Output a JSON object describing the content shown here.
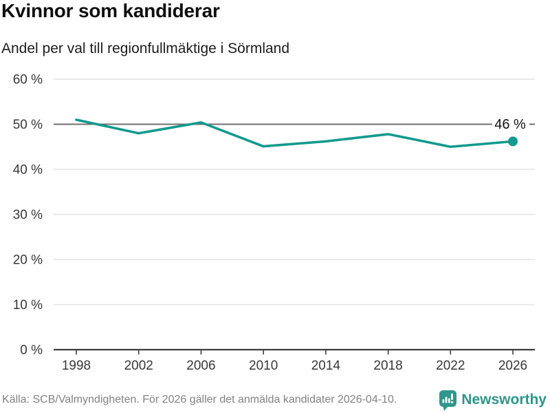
{
  "header": {
    "title": "Kvinnor som kandiderar",
    "subtitle": "Andel per val till regionfullmäktige i Sörmland"
  },
  "chart_data": {
    "type": "line",
    "title": "Kvinnor som kandiderar",
    "subtitle": "Andel per val till regionfullmäktige i Sörmland",
    "categories": [
      "1998",
      "2002",
      "2006",
      "2010",
      "2014",
      "2018",
      "2022",
      "2026"
    ],
    "values": [
      51,
      48,
      50.4,
      45.1,
      46.2,
      47.8,
      45,
      46.2
    ],
    "end_label": "46 %",
    "ylim": [
      0,
      60
    ],
    "ytick_step": 10,
    "ytick_suffix": " %",
    "reference_value": 50,
    "grid": true,
    "legend": false,
    "colors": {
      "line": "#129a8e",
      "grid": "#e3e3e3",
      "reference_line": "#6f6f6f",
      "axis": "#3d3d3d",
      "tick_label": "#383838",
      "end_label": "#121212"
    }
  },
  "footer": {
    "source": "Källa: SCB/Valmyndigheten. För 2026 gäller det anmälda kandidater 2026-04-10.",
    "brand": "Newsworthy",
    "brand_color": "#2f968b",
    "logo_icon": "newsworthy-speech-bubble-chart-icon"
  }
}
